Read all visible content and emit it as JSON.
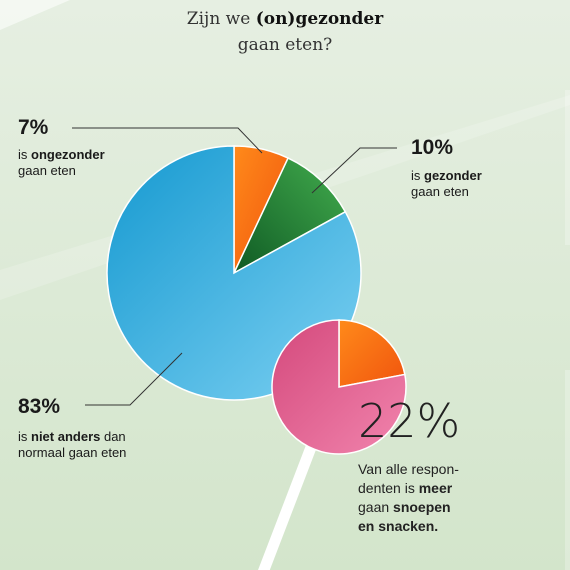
{
  "title": {
    "pre": "Zijn we ",
    "bold": "(on)gezonder",
    "line2": "gaan eten?"
  },
  "labels": [
    {
      "value": "7%",
      "pre": "is ",
      "bold": "ongezonder",
      "post": "",
      "line2": "gaan eten"
    },
    {
      "value": "10%",
      "pre": "is ",
      "bold": "gezonder",
      "post": "",
      "line2": "gaan eten"
    },
    {
      "value": "83%",
      "pre": "is ",
      "bold": "niet anders",
      "post": " dan",
      "line2": "normaal gaan eten"
    }
  ],
  "highlight": {
    "value": "22%",
    "l1": "Van alle respon-",
    "l2_pre": "denten is ",
    "l2_bold": "meer",
    "l3_pre": "gaan ",
    "l3_bold": "snoepen",
    "l4_bold": "en snacken."
  },
  "colors": {
    "ongezonder": "#f27a18",
    "gezonder": "#2e9440",
    "niet_anders": "#4fb6e3",
    "lollipop": "#e0608f",
    "background": "#dce9d6"
  },
  "chart_data": [
    {
      "type": "pie",
      "title": "Zijn we (on)gezonder gaan eten?",
      "categories": [
        "ongezonder",
        "gezonder",
        "niet anders"
      ],
      "values": [
        7,
        10,
        83
      ],
      "unit": "%"
    },
    {
      "type": "pie",
      "title": "",
      "categories": [
        "meer snoepen en snacken",
        ""
      ],
      "values": [
        22,
        78
      ],
      "unit": "%"
    }
  ]
}
